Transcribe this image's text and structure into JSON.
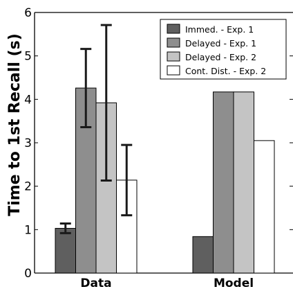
{
  "chart_data": {
    "type": "bar",
    "title": "",
    "xlabel": "",
    "ylabel": "Time to 1st Recall (s)",
    "ylim": [
      0,
      6
    ],
    "yticks": [
      0,
      1,
      2,
      3,
      4,
      5,
      6
    ],
    "categories": [
      "Data",
      "Model"
    ],
    "legend_position": "top-right",
    "grid": false,
    "series": [
      {
        "name": "Immed. - Exp. 1",
        "color": "#5f5f5f",
        "values": [
          1.03,
          0.84
        ],
        "errors": [
          [
            0.92,
            1.14
          ],
          null
        ]
      },
      {
        "name": "Delayed - Exp. 1",
        "color": "#8e8e8e",
        "values": [
          4.26,
          4.17
        ],
        "errors": [
          [
            3.36,
            5.16
          ],
          null
        ]
      },
      {
        "name": "Delayed - Exp. 2",
        "color": "#c4c4c4",
        "values": [
          3.92,
          4.17
        ],
        "errors": [
          [
            2.13,
            5.71
          ],
          null
        ]
      },
      {
        "name": "Cont. Dist. - Exp. 2",
        "color": "#ffffff",
        "values": [
          2.14,
          3.05
        ],
        "errors": [
          [
            1.33,
            2.95
          ],
          null
        ]
      }
    ]
  }
}
